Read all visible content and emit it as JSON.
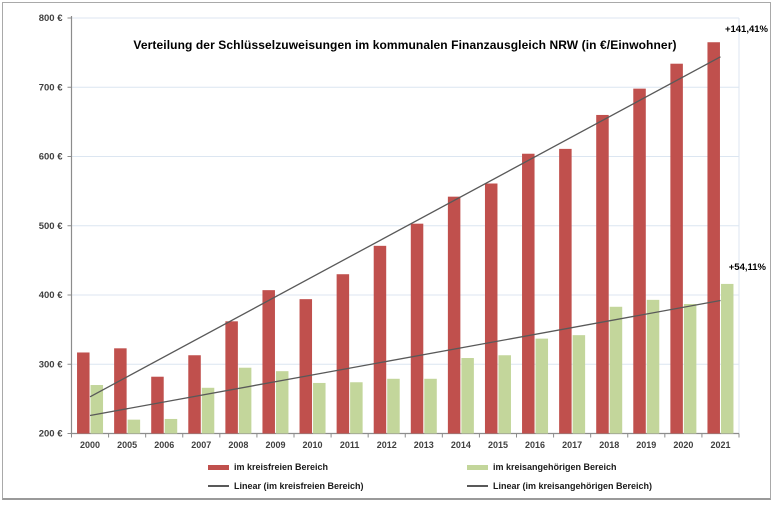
{
  "window": {
    "background": "#ffffff",
    "frame_border_color": "#a9a9a9"
  },
  "chart_data": {
    "type": "bar",
    "title": "Verteilung der Schlüsselzuweisungen im kommunalen Finanzausgleich NRW (in €/Einwohner)",
    "categories": [
      "2000",
      "2005",
      "2006",
      "2007",
      "2008",
      "2009",
      "2010",
      "2011",
      "2012",
      "2013",
      "2014",
      "2015",
      "2016",
      "2017",
      "2018",
      "2019",
      "2020",
      "2021"
    ],
    "series": [
      {
        "name": "im kreisfreien Bereich",
        "color": "#C0504D",
        "values": [
          317,
          323,
          282,
          313,
          362,
          407,
          394,
          430,
          471,
          503,
          542,
          561,
          604,
          611,
          660,
          698,
          734,
          765
        ]
      },
      {
        "name": "im kreisangehörigen Bereich",
        "color": "#C3D69B",
        "values": [
          270,
          220,
          221,
          266,
          295,
          290,
          273,
          274,
          279,
          279,
          309,
          313,
          337,
          342,
          383,
          393,
          387,
          416
        ]
      }
    ],
    "trendlines": [
      {
        "name": "Linear (im kreisfreien Bereich)",
        "color": "#595959",
        "start_value": 253,
        "end_value": 744
      },
      {
        "name": "Linear (im kreisangehörigen Bereich)",
        "color": "#595959",
        "start_value": 226,
        "end_value": 392
      }
    ],
    "annotations": [
      {
        "label": "+141,41%",
        "series": "im kreisfreien Bereich"
      },
      {
        "label": "+54,11%",
        "series": "im kreisangehörigen Bereich"
      }
    ],
    "y_axis": {
      "min": 200,
      "max": 800,
      "tick_step": 100,
      "tick_suffix": " €",
      "ticks": [
        200,
        300,
        400,
        500,
        600,
        700,
        800
      ]
    },
    "x_axis": {
      "label_color": "#404040"
    },
    "grid": true,
    "gridline_color": "#DCE6F1",
    "axis_color": "#8C8C8C",
    "legend_position": "bottom"
  },
  "legend": {
    "items": [
      {
        "label": "im kreisfreien Bereich",
        "swatch": "bar",
        "color": "#C0504D"
      },
      {
        "label": "im kreisangehörigen Bereich",
        "swatch": "bar",
        "color": "#C3D69B"
      },
      {
        "label": "Linear (im kreisfreien Bereich)",
        "swatch": "line",
        "color": "#595959"
      },
      {
        "label": "Linear (im kreisangehörigen Bereich)",
        "swatch": "line",
        "color": "#595959"
      }
    ]
  }
}
